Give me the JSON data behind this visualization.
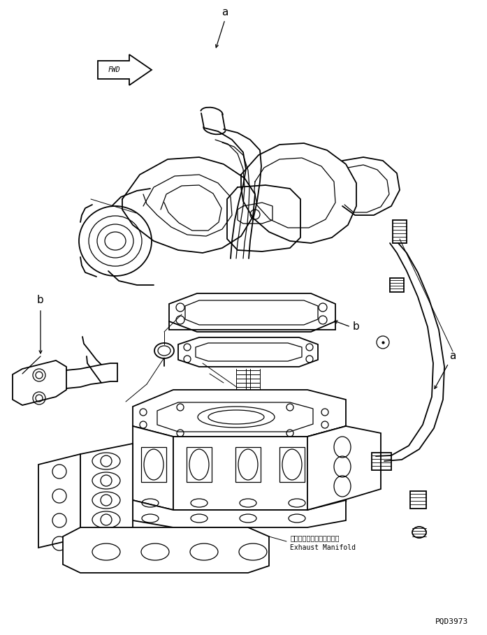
{
  "bg_color": "#ffffff",
  "line_color": "#000000",
  "lw": 0.9,
  "lw2": 1.3,
  "fig_w": 6.97,
  "fig_h": 9.09,
  "dpi": 100,
  "exhaust_jp": "エキゾーストマニホールド",
  "exhaust_en": "Exhaust Manifold",
  "catalog_no": "PQD3973"
}
